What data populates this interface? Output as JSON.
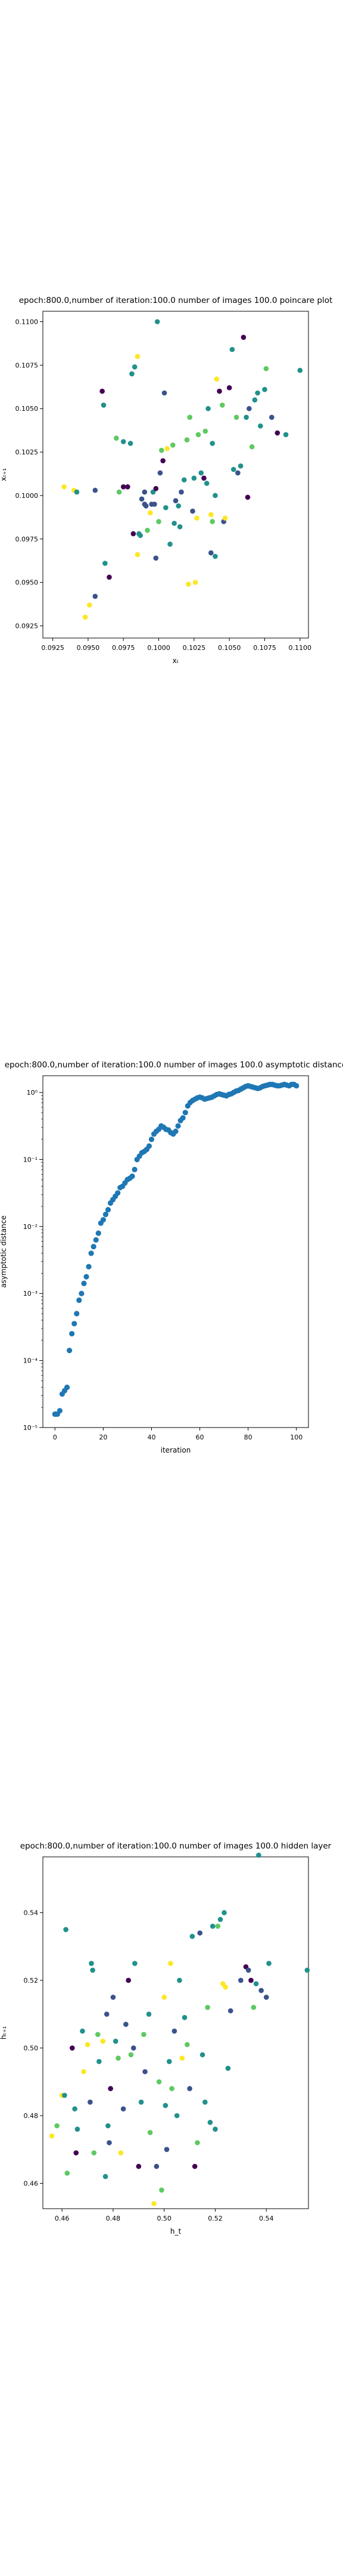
{
  "colors": {
    "background": "#ffffff",
    "marker": "#1f77b4",
    "viridis": [
      "#440154",
      "#3b528b",
      "#21918c",
      "#5ec962",
      "#fde725"
    ]
  },
  "chart_data": [
    {
      "type": "scatter",
      "title": "epoch:800.0,number of iteration:100.0 number of images 100.0 poincare plot",
      "xlabel": "xₜ",
      "ylabel": "xₜ₊₁",
      "xlim": [
        0.0918,
        0.1106
      ],
      "ylim": [
        0.0918,
        0.1106
      ],
      "xticks": [
        "0.0925",
        "0.0950",
        "0.0975",
        "0.1000",
        "0.1025",
        "0.1050",
        "0.1075",
        "0.1100"
      ],
      "yticks": [
        "0.0925",
        "0.0950",
        "0.0975",
        "0.1000",
        "0.1025",
        "0.1050",
        "0.1075",
        "0.1100"
      ],
      "grid": false,
      "colormap": "viridis",
      "points": [
        [
          0.0933,
          0.1005,
          0.95
        ],
        [
          0.094,
          0.1003,
          0.9
        ],
        [
          0.0942,
          0.1002,
          0.4
        ],
        [
          0.0948,
          0.093,
          0.95
        ],
        [
          0.0951,
          0.0937,
          0.9
        ],
        [
          0.0955,
          0.0942,
          0.2
        ],
        [
          0.0955,
          0.1003,
          0.3
        ],
        [
          0.096,
          0.106,
          0.1
        ],
        [
          0.0961,
          0.1052,
          0.55
        ],
        [
          0.0962,
          0.0961,
          0.5
        ],
        [
          0.0965,
          0.0953,
          0.1
        ],
        [
          0.097,
          0.1033,
          0.65
        ],
        [
          0.0972,
          0.1002,
          0.7
        ],
        [
          0.0975,
          0.1005,
          0.0
        ],
        [
          0.0975,
          0.1031,
          0.55
        ],
        [
          0.0978,
          0.1005,
          0.05
        ],
        [
          0.098,
          0.103,
          0.6
        ],
        [
          0.0981,
          0.107,
          0.5
        ],
        [
          0.0982,
          0.0978,
          0.05
        ],
        [
          0.0983,
          0.1074,
          0.5
        ],
        [
          0.0985,
          0.108,
          0.9
        ],
        [
          0.0985,
          0.0966,
          0.9
        ],
        [
          0.0986,
          0.0978,
          0.6
        ],
        [
          0.0987,
          0.0977,
          0.45
        ],
        [
          0.0988,
          0.0998,
          0.2
        ],
        [
          0.099,
          0.0995,
          0.25
        ],
        [
          0.099,
          0.1002,
          0.15
        ],
        [
          0.0991,
          0.0994,
          0.35
        ],
        [
          0.0992,
          0.098,
          0.7
        ],
        [
          0.0994,
          0.099,
          0.9
        ],
        [
          0.0995,
          0.0995,
          0.3
        ],
        [
          0.0996,
          0.1002,
          0.6
        ],
        [
          0.0997,
          0.0995,
          0.2
        ],
        [
          0.0998,
          0.1004,
          0.0
        ],
        [
          0.0998,
          0.0964,
          0.15
        ],
        [
          0.0999,
          0.11,
          0.55
        ],
        [
          0.1,
          0.0985,
          0.75
        ],
        [
          0.1001,
          0.1013,
          0.3
        ],
        [
          0.1002,
          0.1026,
          0.65
        ],
        [
          0.1003,
          0.102,
          0.1
        ],
        [
          0.1004,
          0.1059,
          0.2
        ],
        [
          0.1005,
          0.0993,
          0.4
        ],
        [
          0.1006,
          0.1027,
          0.9
        ],
        [
          0.1008,
          0.0972,
          0.6
        ],
        [
          0.101,
          0.1029,
          0.8
        ],
        [
          0.1011,
          0.0984,
          0.55
        ],
        [
          0.1012,
          0.0997,
          0.35
        ],
        [
          0.1014,
          0.0994,
          0.45
        ],
        [
          0.1015,
          0.0982,
          0.55
        ],
        [
          0.1016,
          0.1002,
          0.2
        ],
        [
          0.1018,
          0.1009,
          0.6
        ],
        [
          0.102,
          0.1032,
          0.85
        ],
        [
          0.1021,
          0.0949,
          0.95
        ],
        [
          0.1022,
          0.1045,
          0.75
        ],
        [
          0.1024,
          0.0991,
          0.3
        ],
        [
          0.1025,
          0.101,
          0.5
        ],
        [
          0.1026,
          0.095,
          0.9
        ],
        [
          0.1027,
          0.0987,
          0.95
        ],
        [
          0.1028,
          0.1035,
          0.85
        ],
        [
          0.103,
          0.1013,
          0.55
        ],
        [
          0.1032,
          0.101,
          0.1
        ],
        [
          0.1033,
          0.1037,
          0.8
        ],
        [
          0.1034,
          0.1007,
          0.4
        ],
        [
          0.1035,
          0.105,
          0.55
        ],
        [
          0.1037,
          0.0967,
          0.35
        ],
        [
          0.1037,
          0.0989,
          0.9
        ],
        [
          0.1038,
          0.0985,
          0.65
        ],
        [
          0.1038,
          0.103,
          0.6
        ],
        [
          0.104,
          0.1,
          0.5
        ],
        [
          0.104,
          0.0965,
          0.4
        ],
        [
          0.1041,
          0.1067,
          0.9
        ],
        [
          0.1043,
          0.106,
          0.1
        ],
        [
          0.1045,
          0.1052,
          0.65
        ],
        [
          0.1046,
          0.0985,
          0.35
        ],
        [
          0.1047,
          0.0987,
          0.95
        ],
        [
          0.105,
          0.1062,
          0.0
        ],
        [
          0.1052,
          0.1084,
          0.6
        ],
        [
          0.1053,
          0.1015,
          0.6
        ],
        [
          0.1055,
          0.1045,
          0.7
        ],
        [
          0.1056,
          0.1013,
          0.3
        ],
        [
          0.1058,
          0.1017,
          0.55
        ],
        [
          0.106,
          0.1091,
          0.0
        ],
        [
          0.1062,
          0.1045,
          0.4
        ],
        [
          0.1063,
          0.0999,
          0.0
        ],
        [
          0.1064,
          0.105,
          0.2
        ],
        [
          0.1066,
          0.1028,
          0.75
        ],
        [
          0.1068,
          0.1055,
          0.6
        ],
        [
          0.107,
          0.1059,
          0.5
        ],
        [
          0.1072,
          0.104,
          0.55
        ],
        [
          0.1075,
          0.1061,
          0.5
        ],
        [
          0.1076,
          0.1073,
          0.85
        ],
        [
          0.108,
          0.1045,
          0.3
        ],
        [
          0.1084,
          0.1036,
          0.05
        ],
        [
          0.109,
          0.1035,
          0.4
        ],
        [
          0.11,
          0.1072,
          0.55
        ]
      ]
    },
    {
      "type": "scatter",
      "title": "epoch:800.0,number of iteration:100.0  number of images 100.0 asymptotic distance",
      "xlabel": "iteration",
      "ylabel": "asymptotic distance",
      "yscale": "log",
      "xlim": [
        -5,
        105
      ],
      "ylim_exp": [
        -5,
        0.25
      ],
      "xticks": [
        "0",
        "20",
        "40",
        "60",
        "80",
        "100"
      ],
      "yticks": [
        "10⁻⁵",
        "10⁻⁴",
        "10⁻³",
        "10⁻²",
        "10⁻¹",
        "10⁰"
      ],
      "grid": false,
      "x": [
        0,
        1,
        2,
        3,
        4,
        5,
        6,
        7,
        8,
        9,
        10,
        11,
        12,
        13,
        14,
        15,
        16,
        17,
        18,
        19,
        20,
        21,
        22,
        23,
        24,
        25,
        26,
        27,
        28,
        29,
        30,
        31,
        32,
        33,
        34,
        35,
        36,
        37,
        38,
        39,
        40,
        41,
        42,
        43,
        44,
        45,
        46,
        47,
        48,
        49,
        50,
        51,
        52,
        53,
        54,
        55,
        56,
        57,
        58,
        59,
        60,
        61,
        62,
        63,
        64,
        65,
        66,
        67,
        68,
        69,
        70,
        71,
        72,
        73,
        74,
        75,
        76,
        77,
        78,
        79,
        80,
        81,
        82,
        83,
        84,
        85,
        86,
        87,
        88,
        89,
        90,
        91,
        92,
        93,
        94,
        95,
        96,
        97,
        98,
        99,
        100
      ],
      "y_log10": [
        -4.8,
        -4.8,
        -4.75,
        -4.5,
        -4.45,
        -4.4,
        -3.85,
        -3.6,
        -3.45,
        -3.3,
        -3.1,
        -3.0,
        -2.85,
        -2.75,
        -2.6,
        -2.4,
        -2.3,
        -2.2,
        -2.1,
        -1.95,
        -1.9,
        -1.82,
        -1.75,
        -1.65,
        -1.6,
        -1.55,
        -1.5,
        -1.42,
        -1.4,
        -1.35,
        -1.3,
        -1.28,
        -1.25,
        -1.15,
        -1.0,
        -0.95,
        -0.9,
        -0.88,
        -0.85,
        -0.8,
        -0.7,
        -0.62,
        -0.58,
        -0.55,
        -0.5,
        -0.52,
        -0.55,
        -0.56,
        -0.6,
        -0.62,
        -0.58,
        -0.5,
        -0.42,
        -0.38,
        -0.3,
        -0.2,
        -0.15,
        -0.12,
        -0.1,
        -0.08,
        -0.07,
        -0.08,
        -0.1,
        -0.09,
        -0.08,
        -0.07,
        -0.05,
        -0.03,
        -0.02,
        -0.03,
        -0.04,
        -0.05,
        -0.03,
        -0.02,
        0.0,
        0.02,
        0.03,
        0.05,
        0.07,
        0.09,
        0.1,
        0.09,
        0.08,
        0.07,
        0.06,
        0.07,
        0.09,
        0.1,
        0.11,
        0.12,
        0.12,
        0.11,
        0.1,
        0.1,
        0.11,
        0.12,
        0.11,
        0.1,
        0.12,
        0.12,
        0.1
      ]
    },
    {
      "type": "scatter",
      "title": "epoch:800.0,number of iteration:100.0  number of images 100.0 hidden layer",
      "xlabel": "h_t",
      "ylabel": "hₜ₊₁",
      "xlim": [
        0.4525,
        0.5565
      ],
      "ylim": [
        0.4525,
        0.5565
      ],
      "xticks": [
        "0.46",
        "0.48",
        "0.50",
        "0.52",
        "0.54"
      ],
      "yticks": [
        "0.46",
        "0.48",
        "0.50",
        "0.52",
        "0.54"
      ],
      "grid": false,
      "colormap": "viridis",
      "points": [
        [
          0.456,
          0.474,
          0.95
        ],
        [
          0.458,
          0.477,
          0.85
        ],
        [
          0.46,
          0.486,
          0.95
        ],
        [
          0.461,
          0.486,
          0.6
        ],
        [
          0.4615,
          0.535,
          0.5
        ],
        [
          0.462,
          0.463,
          0.65
        ],
        [
          0.464,
          0.5,
          0.05
        ],
        [
          0.465,
          0.482,
          0.55
        ],
        [
          0.4655,
          0.469,
          0.0
        ],
        [
          0.466,
          0.476,
          0.4
        ],
        [
          0.468,
          0.505,
          0.6
        ],
        [
          0.4685,
          0.493,
          0.95
        ],
        [
          0.47,
          0.501,
          0.9
        ],
        [
          0.471,
          0.484,
          0.2
        ],
        [
          0.4715,
          0.525,
          0.55
        ],
        [
          0.472,
          0.523,
          0.5
        ],
        [
          0.4725,
          0.469,
          0.7
        ],
        [
          0.474,
          0.504,
          0.85
        ],
        [
          0.4745,
          0.496,
          0.4
        ],
        [
          0.476,
          0.502,
          0.95
        ],
        [
          0.477,
          0.462,
          0.55
        ],
        [
          0.4775,
          0.51,
          0.3
        ],
        [
          0.478,
          0.477,
          0.6
        ],
        [
          0.4785,
          0.472,
          0.15
        ],
        [
          0.479,
          0.488,
          0.1
        ],
        [
          0.48,
          0.515,
          0.2
        ],
        [
          0.481,
          0.502,
          0.4
        ],
        [
          0.482,
          0.497,
          0.65
        ],
        [
          0.483,
          0.469,
          0.95
        ],
        [
          0.484,
          0.482,
          0.25
        ],
        [
          0.485,
          0.507,
          0.3
        ],
        [
          0.486,
          0.52,
          0.1
        ],
        [
          0.487,
          0.498,
          0.7
        ],
        [
          0.488,
          0.5,
          0.2
        ],
        [
          0.4885,
          0.525,
          0.55
        ],
        [
          0.49,
          0.465,
          0.0
        ],
        [
          0.491,
          0.484,
          0.45
        ],
        [
          0.492,
          0.504,
          0.85
        ],
        [
          0.4925,
          0.493,
          0.35
        ],
        [
          0.494,
          0.51,
          0.6
        ],
        [
          0.4945,
          0.475,
          0.65
        ],
        [
          0.496,
          0.454,
          0.95
        ],
        [
          0.497,
          0.465,
          0.3
        ],
        [
          0.498,
          0.49,
          0.85
        ],
        [
          0.499,
          0.458,
          0.8
        ],
        [
          0.5,
          0.515,
          0.9
        ],
        [
          0.5005,
          0.483,
          0.55
        ],
        [
          0.501,
          0.47,
          0.2
        ],
        [
          0.502,
          0.496,
          0.5
        ],
        [
          0.5025,
          0.525,
          0.95
        ],
        [
          0.503,
          0.488,
          0.7
        ],
        [
          0.504,
          0.505,
          0.25
        ],
        [
          0.505,
          0.48,
          0.6
        ],
        [
          0.506,
          0.52,
          0.4
        ],
        [
          0.507,
          0.497,
          0.9
        ],
        [
          0.508,
          0.509,
          0.45
        ],
        [
          0.509,
          0.501,
          0.7
        ],
        [
          0.51,
          0.488,
          0.3
        ],
        [
          0.511,
          0.533,
          0.55
        ],
        [
          0.512,
          0.465,
          0.1
        ],
        [
          0.513,
          0.472,
          0.85
        ],
        [
          0.514,
          0.534,
          0.3
        ],
        [
          0.515,
          0.498,
          0.6
        ],
        [
          0.516,
          0.484,
          0.55
        ],
        [
          0.517,
          0.512,
          0.65
        ],
        [
          0.518,
          0.478,
          0.4
        ],
        [
          0.519,
          0.536,
          0.6
        ],
        [
          0.52,
          0.476,
          0.6
        ],
        [
          0.521,
          0.536,
          0.85
        ],
        [
          0.522,
          0.538,
          0.55
        ],
        [
          0.523,
          0.519,
          0.9
        ],
        [
          0.5235,
          0.54,
          0.6
        ],
        [
          0.524,
          0.518,
          0.95
        ],
        [
          0.525,
          0.494,
          0.45
        ],
        [
          0.526,
          0.511,
          0.2
        ],
        [
          0.53,
          0.52,
          0.3
        ],
        [
          0.532,
          0.524,
          0.0
        ],
        [
          0.533,
          0.523,
          0.3
        ],
        [
          0.534,
          0.52,
          0.1
        ],
        [
          0.535,
          0.512,
          0.85
        ],
        [
          0.536,
          0.519,
          0.55
        ],
        [
          0.537,
          0.557,
          0.6
        ],
        [
          0.538,
          0.517,
          0.2
        ],
        [
          0.54,
          0.515,
          0.3
        ],
        [
          0.541,
          0.525,
          0.5
        ],
        [
          0.556,
          0.523,
          0.55
        ]
      ]
    }
  ]
}
